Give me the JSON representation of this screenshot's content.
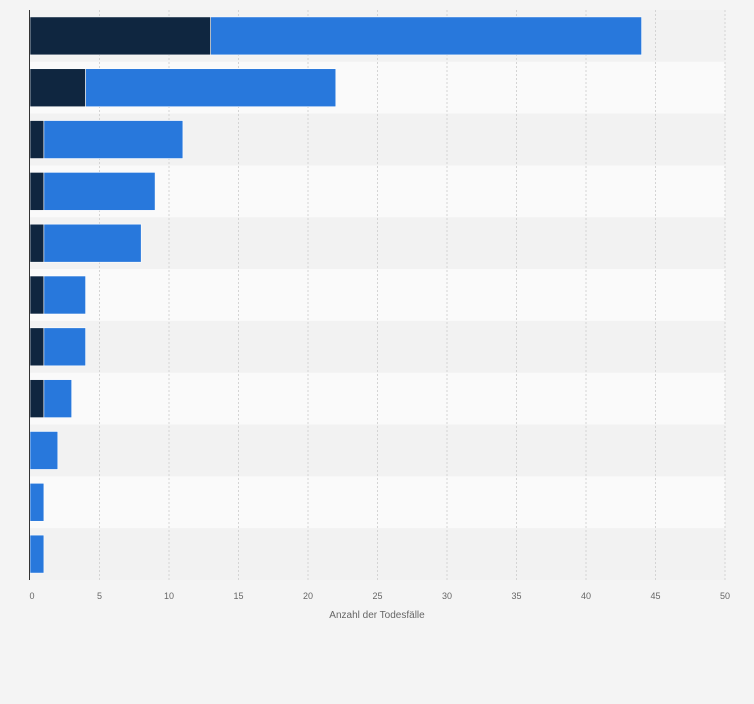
{
  "chart_data": {
    "type": "bar",
    "orientation": "horizontal",
    "stacked": true,
    "title": "",
    "xlabel": "Anzahl der Todesfälle",
    "ylabel": "",
    "xlim": [
      0,
      50
    ],
    "xticks": [
      "0",
      "5",
      "10",
      "15",
      "20",
      "25",
      "30",
      "35",
      "40",
      "45",
      "50"
    ],
    "grid": true,
    "legend": "none",
    "categories": [
      "",
      "",
      "",
      "",
      "",
      "",
      "",
      "",
      "",
      "",
      ""
    ],
    "series": [
      {
        "color": "#0f2640",
        "values": [
          13,
          4,
          1,
          1,
          1,
          1,
          1,
          1,
          0,
          0,
          0
        ]
      },
      {
        "color": "#2878dc",
        "values": [
          31,
          18,
          10,
          8,
          7,
          3,
          3,
          2,
          2,
          1,
          1
        ]
      }
    ]
  }
}
